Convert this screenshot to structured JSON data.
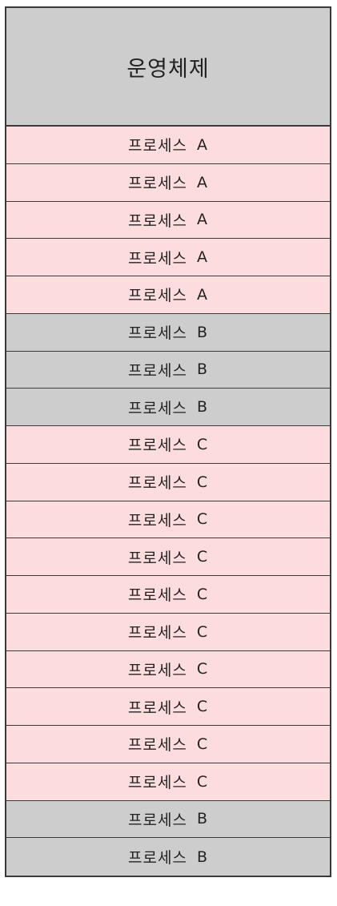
{
  "os_label": "운영체제",
  "process_word": "프로세스",
  "colors": {
    "os": "#cdcdcd",
    "A": "#fcdcdc",
    "B": "#cdcdcd",
    "C": "#fcdcdc",
    "border": "#3a3a3a"
  },
  "segments": [
    "A",
    "A",
    "A",
    "A",
    "A",
    "B",
    "B",
    "B",
    "C",
    "C",
    "C",
    "C",
    "C",
    "C",
    "C",
    "C",
    "C",
    "C",
    "B",
    "B"
  ]
}
